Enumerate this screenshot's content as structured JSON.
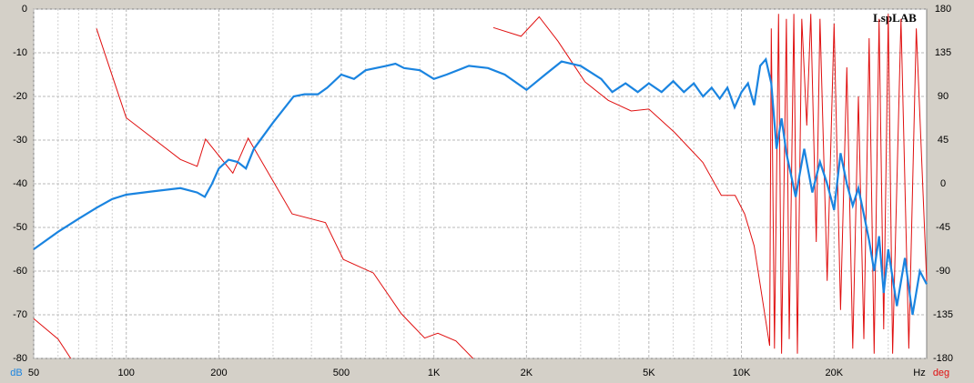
{
  "chart_data": {
    "type": "line",
    "logo": "LspLAB",
    "y_label": "dB",
    "x_label": "Hz",
    "y2_label": "deg",
    "x_log": true,
    "grid": true,
    "xlim": [
      50,
      40000
    ],
    "ylim": [
      -80,
      0
    ],
    "y2lim": [
      -180,
      180
    ],
    "xticks": [
      50,
      100,
      200,
      500,
      {
        "value": 1000,
        "label": "1K"
      },
      {
        "value": 2000,
        "label": "2K"
      },
      {
        "value": 5000,
        "label": "5K"
      },
      {
        "value": 10000,
        "label": "10K"
      },
      {
        "value": 20000,
        "label": "20K"
      }
    ],
    "xminor": [
      60,
      70,
      80,
      90,
      300,
      400,
      600,
      700,
      800,
      900,
      3000,
      4000,
      6000,
      7000,
      8000,
      9000,
      30000
    ],
    "yticks": [
      0,
      -10,
      -20,
      -30,
      -40,
      -50,
      -60,
      -70,
      -80
    ],
    "y2ticks": [
      180,
      135,
      90,
      45,
      0,
      -45,
      -90,
      -135,
      -180
    ],
    "series": [
      {
        "color": "#1a84e0",
        "axis": "y",
        "x": [
          50,
          60,
          70,
          80,
          90,
          100,
          120,
          150,
          170,
          180,
          190,
          200,
          215,
          230,
          245,
          260,
          300,
          350,
          380,
          420,
          450,
          500,
          550,
          600,
          700,
          750,
          800,
          900,
          1000,
          1100,
          1300,
          1500,
          1700,
          2000,
          2300,
          2600,
          3000,
          3500,
          3800,
          4200,
          4600,
          5000,
          5500,
          6000,
          6500,
          7000,
          7500,
          8000,
          8500,
          9000,
          9500,
          10000,
          10500,
          11000,
          11500,
          12000,
          12500,
          13000,
          13500,
          14000,
          15000,
          16000,
          17000,
          18000,
          19000,
          20000,
          21000,
          22000,
          23000,
          24000,
          25000,
          26000,
          27000,
          28000,
          29000,
          30000,
          32000,
          34000,
          36000,
          38000,
          40000
        ],
        "values": [
          -55,
          -51,
          -48,
          -45.5,
          -43.5,
          -42.5,
          -41.8,
          -41,
          -42,
          -43,
          -40,
          -36.5,
          -34.5,
          -35,
          -36.5,
          -32,
          -26,
          -20,
          -19.5,
          -19.5,
          -18,
          -15,
          -16,
          -14,
          -13,
          -12.5,
          -13.5,
          -14,
          -16,
          -15,
          -13,
          -13.5,
          -15,
          -18.5,
          -15,
          -12,
          -13,
          -16,
          -19,
          -17,
          -19,
          -17,
          -19,
          -16.5,
          -19,
          -17,
          -20,
          -18,
          -20.5,
          -18,
          -22.5,
          -19,
          -17,
          -22,
          -13,
          -11.5,
          -17,
          -32,
          -25,
          -33,
          -43,
          -32,
          -42,
          -35,
          -40,
          -46,
          -33,
          -40,
          -45,
          -41,
          -47,
          -53,
          -60,
          -52,
          -65,
          -55,
          -68,
          -57,
          -70,
          -60,
          -63
        ]
      },
      {
        "color": "#e01010",
        "axis": "y2",
        "x": [
          50,
          60,
          66,
          66,
          80,
          100,
          150,
          170,
          181,
          222,
          249,
          346,
          444,
          508,
          636,
          784,
          933,
          1030,
          1180,
          1340,
          1340,
          1560,
          1920,
          2200,
          2530,
          3100,
          3690,
          4380,
          5000,
          6060,
          7490,
          8600,
          9540,
          10240,
          11000,
          12350,
          12500,
          12800,
          13200,
          13500,
          14000,
          14300,
          14800,
          15200,
          15700,
          16300,
          16800,
          17500,
          18000,
          19000,
          20000,
          21000,
          22000,
          23000,
          24000,
          25000,
          26000,
          27000,
          28000,
          29000,
          30000,
          31000,
          33000,
          35000,
          37000,
          40000
        ],
        "values": [
          -139,
          -160,
          -180,
          null,
          160,
          68,
          25,
          18,
          46,
          11,
          47,
          -31,
          -40,
          -78,
          -92,
          -134,
          -159,
          -154,
          -162,
          -180,
          null,
          161,
          152,
          172,
          147,
          105,
          86,
          75,
          77,
          53,
          22,
          -12,
          -12,
          -31,
          -64,
          -167,
          160,
          -170,
          175,
          -175,
          170,
          -160,
          175,
          -175,
          170,
          60,
          175,
          -60,
          170,
          -100,
          165,
          -130,
          120,
          -170,
          90,
          -160,
          150,
          -175,
          170,
          -150,
          175,
          -175,
          170,
          -170,
          160,
          -100
        ]
      }
    ]
  }
}
